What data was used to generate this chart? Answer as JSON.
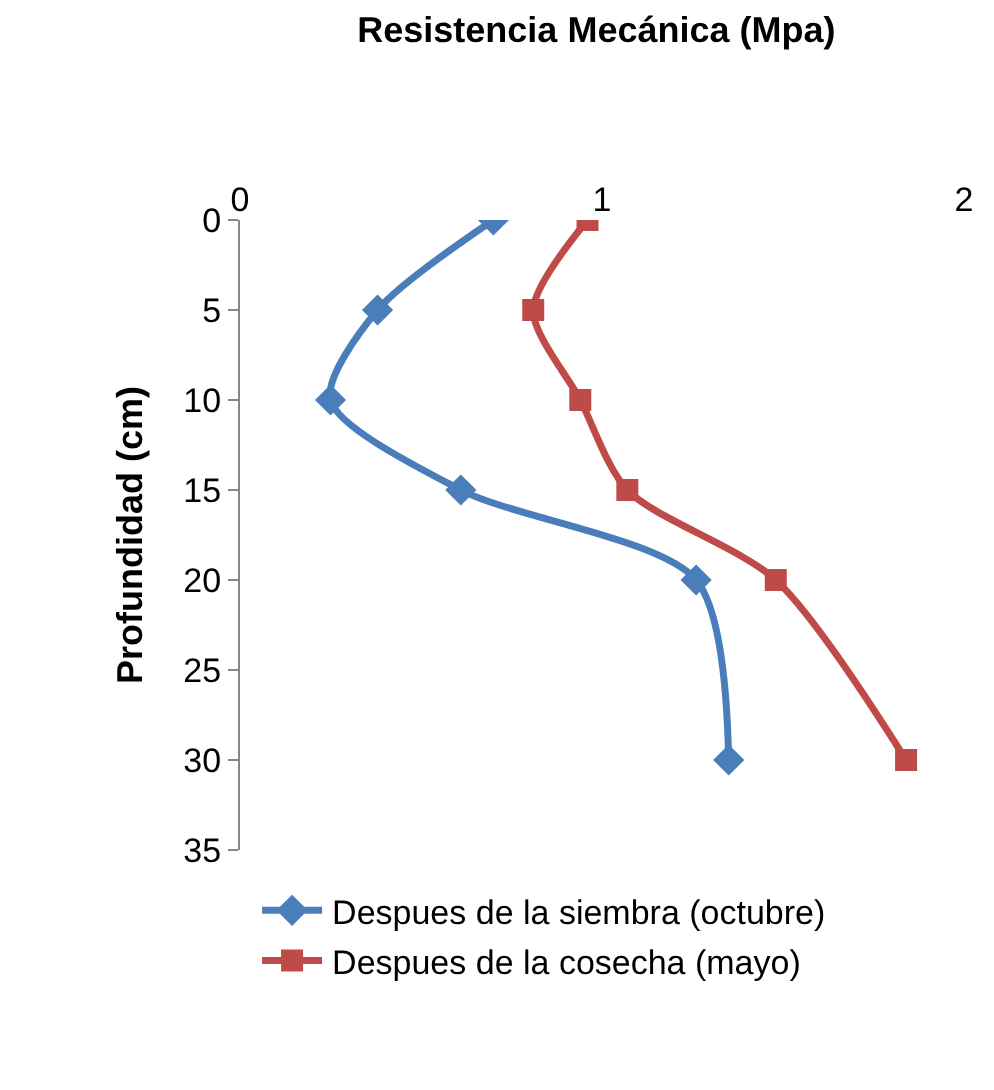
{
  "chart_data": {
    "type": "line",
    "title": "Resistencia Mecánica (Mpa)",
    "ylabel": "Profundidad (cm)",
    "xlim": [
      0,
      2
    ],
    "xticks": [
      0,
      1,
      2
    ],
    "ylim": [
      35,
      0
    ],
    "yticks": [
      0,
      5,
      10,
      15,
      20,
      25,
      30,
      35
    ],
    "legend": "bottom",
    "line_style": "solid",
    "series": [
      {
        "name": "Despues de la siembra (octubre)",
        "color": "#4a7ebb",
        "marker": "diamond",
        "x": [
          0.7,
          0.38,
          0.25,
          0.61,
          1.26,
          1.35
        ],
        "values": [
          0,
          5,
          10,
          15,
          20,
          30
        ]
      },
      {
        "name": "Despues de la cosecha (mayo)",
        "color": "#be4b48",
        "marker": "square",
        "x": [
          0.96,
          0.81,
          0.94,
          1.07,
          1.48,
          1.84
        ],
        "values": [
          0,
          5,
          10,
          15,
          20,
          30
        ]
      }
    ]
  }
}
